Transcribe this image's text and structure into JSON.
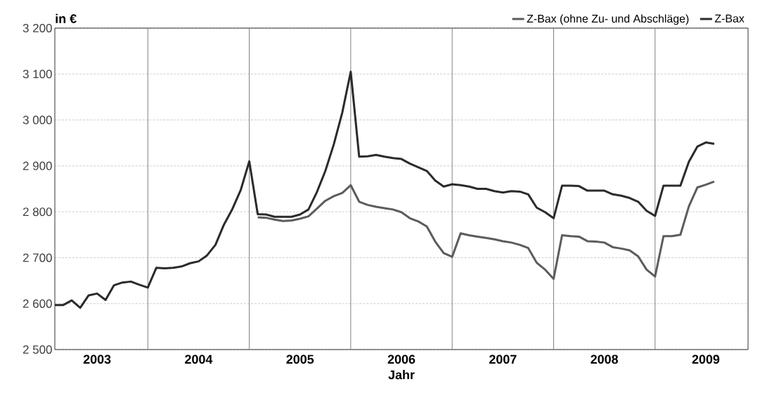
{
  "chart_data": {
    "type": "line",
    "ylabel": "in €",
    "xlabel": "Jahr",
    "xlim": [
      "2003-02",
      "2009-12"
    ],
    "ylim": [
      2500,
      3200
    ],
    "xticks": [
      {
        "value": "2003-07",
        "label": "2003"
      },
      {
        "value": "2004-07",
        "label": "2004"
      },
      {
        "value": "2005-07",
        "label": "2005"
      },
      {
        "value": "2006-07",
        "label": "2006"
      },
      {
        "value": "2007-07",
        "label": "2007"
      },
      {
        "value": "2008-07",
        "label": "2008"
      },
      {
        "value": "2009-07",
        "label": "2009"
      }
    ],
    "yticks": [
      {
        "value": 2500,
        "label": "2 500"
      },
      {
        "value": 2600,
        "label": "2 600"
      },
      {
        "value": 2700,
        "label": "2 700"
      },
      {
        "value": 2800,
        "label": "2 800"
      },
      {
        "value": 2900,
        "label": "2 900"
      },
      {
        "value": 3000,
        "label": "3 000"
      },
      {
        "value": 3100,
        "label": "3 100"
      },
      {
        "value": 3200,
        "label": "3 200"
      }
    ],
    "grid": "y",
    "legend": "top right",
    "marker": "none",
    "line_style": "solid",
    "ref_lines": [
      {
        "axis": "x",
        "value": "2004-01",
        "color": "#808080"
      },
      {
        "axis": "x",
        "value": "2005-01",
        "color": "#808080"
      },
      {
        "axis": "x",
        "value": "2006-01",
        "color": "#808080"
      },
      {
        "axis": "x",
        "value": "2007-01",
        "color": "#808080"
      },
      {
        "axis": "x",
        "value": "2008-01",
        "color": "#808080"
      },
      {
        "axis": "x",
        "value": "2009-01",
        "color": "#808080"
      }
    ],
    "series": [
      {
        "name": "Z-Bax (ohne Zu- und Abschläge)",
        "color": "#5c5c5c",
        "x": [
          "2005-02",
          "2005-03",
          "2005-04",
          "2005-05",
          "2005-06",
          "2005-07",
          "2005-08",
          "2005-09",
          "2005-10",
          "2005-11",
          "2005-12",
          "2006-01",
          "2006-02",
          "2006-03",
          "2006-04",
          "2006-05",
          "2006-06",
          "2006-07",
          "2006-08",
          "2006-09",
          "2006-10",
          "2006-11",
          "2006-12",
          "2007-01",
          "2007-02",
          "2007-03",
          "2007-04",
          "2007-05",
          "2007-06",
          "2007-07",
          "2007-08",
          "2007-09",
          "2007-10",
          "2007-11",
          "2007-12",
          "2008-01",
          "2008-02",
          "2008-03",
          "2008-04",
          "2008-05",
          "2008-06",
          "2008-07",
          "2008-08",
          "2008-09",
          "2008-10",
          "2008-11",
          "2008-12",
          "2009-01",
          "2009-02",
          "2009-03",
          "2009-04",
          "2009-05",
          "2009-06",
          "2009-07",
          "2009-08"
        ],
        "values": [
          2788,
          2787,
          2783,
          2780,
          2781,
          2785,
          2790,
          2807,
          2824,
          2834,
          2841,
          2858,
          2822,
          2815,
          2811,
          2808,
          2805,
          2799,
          2786,
          2779,
          2768,
          2735,
          2710,
          2702,
          2753,
          2749,
          2746,
          2743,
          2740,
          2736,
          2733,
          2728,
          2721,
          2689,
          2674,
          2654,
          2749,
          2747,
          2746,
          2736,
          2735,
          2733,
          2723,
          2720,
          2716,
          2703,
          2674,
          2659,
          2747,
          2747,
          2750,
          2812,
          2853,
          2859,
          2866
        ]
      },
      {
        "name": "Z-Bax",
        "color": "#2b2b2b",
        "x": [
          "2003-02",
          "2003-03",
          "2003-04",
          "2003-05",
          "2003-06",
          "2003-07",
          "2003-08",
          "2003-09",
          "2003-10",
          "2003-11",
          "2003-12",
          "2004-01",
          "2004-02",
          "2004-03",
          "2004-04",
          "2004-05",
          "2004-06",
          "2004-07",
          "2004-08",
          "2004-09",
          "2004-10",
          "2004-11",
          "2004-12",
          "2005-01",
          "2005-02",
          "2005-03",
          "2005-04",
          "2005-05",
          "2005-06",
          "2005-07",
          "2005-08",
          "2005-09",
          "2005-10",
          "2005-11",
          "2005-12",
          "2006-01",
          "2006-02",
          "2006-03",
          "2006-04",
          "2006-05",
          "2006-06",
          "2006-07",
          "2006-08",
          "2006-09",
          "2006-10",
          "2006-11",
          "2006-12",
          "2007-01",
          "2007-02",
          "2007-03",
          "2007-04",
          "2007-05",
          "2007-06",
          "2007-07",
          "2007-08",
          "2007-09",
          "2007-10",
          "2007-11",
          "2007-12",
          "2008-01",
          "2008-02",
          "2008-03",
          "2008-04",
          "2008-05",
          "2008-06",
          "2008-07",
          "2008-08",
          "2008-09",
          "2008-10",
          "2008-11",
          "2008-12",
          "2009-01",
          "2009-02",
          "2009-03",
          "2009-04",
          "2009-05",
          "2009-06",
          "2009-07",
          "2009-08"
        ],
        "values": [
          2597,
          2597,
          2607,
          2591,
          2618,
          2622,
          2608,
          2640,
          2646,
          2648,
          2641,
          2635,
          2678,
          2677,
          2678,
          2681,
          2688,
          2692,
          2705,
          2728,
          2772,
          2806,
          2848,
          2910,
          2795,
          2794,
          2789,
          2789,
          2789,
          2794,
          2805,
          2843,
          2889,
          2947,
          3016,
          3105,
          2920,
          2921,
          2924,
          2920,
          2917,
          2915,
          2905,
          2897,
          2889,
          2868,
          2855,
          2860,
          2858,
          2855,
          2850,
          2850,
          2845,
          2842,
          2845,
          2844,
          2838,
          2809,
          2799,
          2786,
          2857,
          2857,
          2856,
          2846,
          2846,
          2846,
          2838,
          2835,
          2830,
          2822,
          2802,
          2791,
          2857,
          2857,
          2857,
          2909,
          2942,
          2951,
          2948
        ]
      }
    ]
  }
}
